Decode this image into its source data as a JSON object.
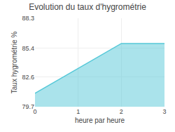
{
  "chart_data": {
    "type": "area",
    "title": "Evolution du taux d'hygrométrie",
    "x_label": "heure par heure",
    "y_label": "Taux hygrométrie %",
    "x": [
      0,
      2,
      3
    ],
    "values": [
      81.0,
      85.85,
      85.85
    ],
    "color": "#55c8d8",
    "xlim": [
      0,
      3
    ],
    "xticks": [
      0,
      1,
      2,
      3
    ],
    "ylim": [
      79.7,
      88.3
    ],
    "yticks": [
      79.7,
      82.6,
      85.4,
      88.3
    ],
    "grid": true
  }
}
